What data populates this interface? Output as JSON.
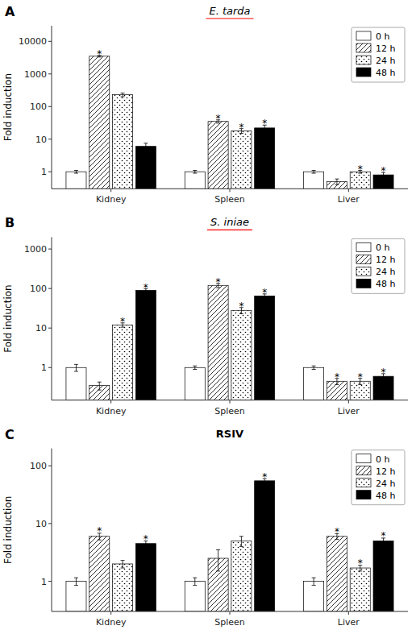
{
  "chart_data": [
    {
      "type": "bar",
      "panel_label": "A",
      "title": "E. tarda",
      "ylabel": "Fold induction",
      "categories": [
        "Kidney",
        "Spleen",
        "Liver"
      ],
      "series": [
        {
          "name": "0 h",
          "color": "white",
          "values": [
            1.0,
            1.0,
            1.0
          ],
          "errors": [
            0.1,
            0.1,
            0.1
          ],
          "annotations": [
            null,
            null,
            null
          ]
        },
        {
          "name": "12 h",
          "color": "white",
          "values": [
            3500,
            35,
            0.5
          ],
          "errors": [
            200,
            4,
            0.1
          ],
          "annotations": [
            "*",
            "*",
            null
          ]
        },
        {
          "name": "24 h",
          "color": "white",
          "values": [
            230,
            18,
            1.0
          ],
          "errors": [
            30,
            3,
            0.1
          ],
          "annotations": [
            null,
            "*",
            "*"
          ]
        },
        {
          "name": "48 h",
          "color": "black",
          "values": [
            6.0,
            22,
            0.8
          ],
          "errors": [
            1.5,
            5,
            0.15
          ],
          "annotations": [
            null,
            "*",
            "*"
          ]
        }
      ],
      "log": "y",
      "ylim": [
        0.3,
        30000
      ],
      "yticks": [
        1,
        10,
        100,
        1000,
        10000
      ],
      "grid": false,
      "legend": "upper right"
    },
    {
      "type": "bar",
      "panel_label": "B",
      "title": "S. iniae",
      "ylabel": "Fold induction",
      "categories": [
        "Kidney",
        "Spleen",
        "Liver"
      ],
      "series": [
        {
          "name": "0 h",
          "color": "white",
          "values": [
            1.0,
            1.0,
            1.0
          ],
          "errors": [
            0.2,
            0.1,
            0.1
          ],
          "annotations": [
            null,
            null,
            null
          ]
        },
        {
          "name": "12 h",
          "color": "white",
          "values": [
            0.35,
            120,
            0.45
          ],
          "errors": [
            0.08,
            15,
            0.08
          ],
          "annotations": [
            null,
            "*",
            "*"
          ]
        },
        {
          "name": "24 h",
          "color": "white",
          "values": [
            12,
            28,
            0.45
          ],
          "errors": [
            1.5,
            5,
            0.08
          ],
          "annotations": [
            "*",
            "*",
            "*"
          ]
        },
        {
          "name": "48 h",
          "color": "black",
          "values": [
            90,
            65,
            0.6
          ],
          "errors": [
            8,
            8,
            0.1
          ],
          "annotations": [
            "*",
            "*",
            "*"
          ]
        }
      ],
      "log": "y",
      "ylim": [
        0.15,
        2000
      ],
      "yticks": [
        1,
        10,
        100,
        1000
      ],
      "grid": false,
      "legend": "upper right"
    },
    {
      "type": "bar",
      "panel_label": "C",
      "title": "RSIV",
      "ylabel": "Fold induction",
      "categories": [
        "Kidney",
        "Spleen",
        "Liver"
      ],
      "series": [
        {
          "name": "0 h",
          "color": "white",
          "values": [
            1.0,
            1.0,
            1.0
          ],
          "errors": [
            0.15,
            0.15,
            0.15
          ],
          "annotations": [
            null,
            null,
            null
          ]
        },
        {
          "name": "12 h",
          "color": "white",
          "values": [
            6.0,
            2.5,
            6.0
          ],
          "errors": [
            0.8,
            1.0,
            0.7
          ],
          "annotations": [
            "*",
            null,
            "*"
          ]
        },
        {
          "name": "24 h",
          "color": "white",
          "values": [
            2.0,
            5.0,
            1.7
          ],
          "errors": [
            0.3,
            1.0,
            0.2
          ],
          "annotations": [
            null,
            null,
            "*"
          ]
        },
        {
          "name": "48 h",
          "color": "black",
          "values": [
            4.5,
            55,
            5.0
          ],
          "errors": [
            0.5,
            5,
            0.6
          ],
          "annotations": [
            "*",
            "*",
            "*"
          ]
        }
      ],
      "log": "y",
      "ylim": [
        0.3,
        200
      ],
      "yticks": [
        1,
        10,
        100
      ],
      "grid": false,
      "legend": "upper right"
    }
  ]
}
